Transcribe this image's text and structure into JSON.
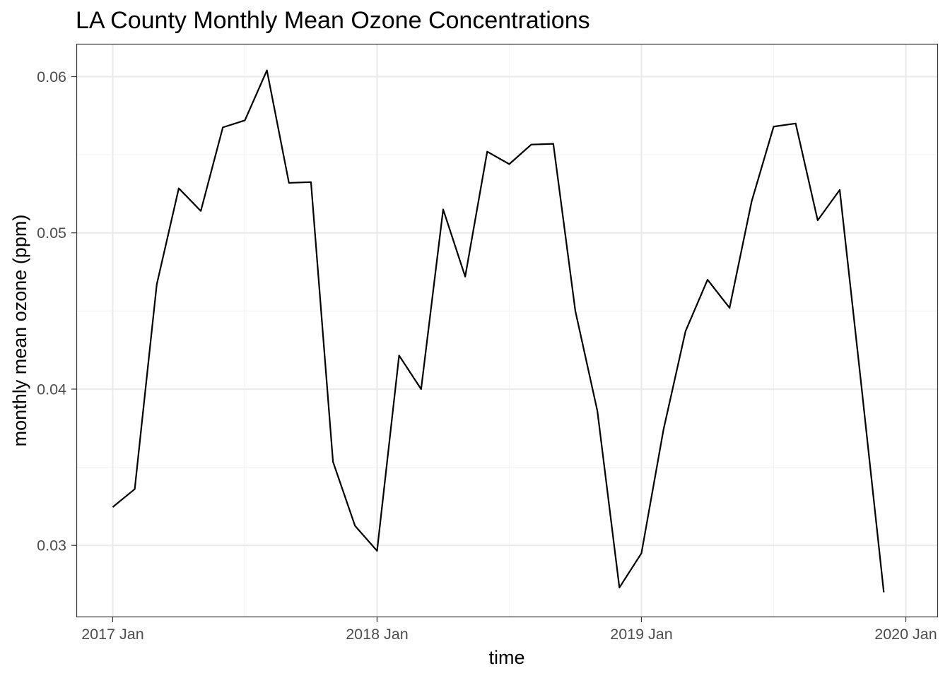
{
  "chart_data": {
    "type": "line",
    "title": "LA County Monthly Mean Ozone Concentrations",
    "xlabel": "time",
    "ylabel": "monthly mean ozone (ppm)",
    "x": [
      "2017-01",
      "2017-02",
      "2017-03",
      "2017-04",
      "2017-05",
      "2017-06",
      "2017-07",
      "2017-08",
      "2017-09",
      "2017-10",
      "2017-11",
      "2017-12",
      "2018-01",
      "2018-02",
      "2018-03",
      "2018-04",
      "2018-05",
      "2018-06",
      "2018-07",
      "2018-08",
      "2018-09",
      "2018-10",
      "2018-11",
      "2018-12",
      "2019-01",
      "2019-02",
      "2019-03",
      "2019-04",
      "2019-05",
      "2019-06",
      "2019-07",
      "2019-08",
      "2019-09",
      "2019-10",
      "2019-11",
      "2019-12"
    ],
    "series": [
      {
        "values": [
          0.03245,
          0.0336,
          0.0467,
          0.05285,
          0.0514,
          0.05675,
          0.0572,
          0.0604,
          0.0532,
          0.05325,
          0.03535,
          0.03125,
          0.02965,
          0.04215,
          0.04,
          0.0515,
          0.0472,
          0.0552,
          0.0544,
          0.05565,
          0.0557,
          0.045,
          0.0386,
          0.0273,
          0.0295,
          0.0374,
          0.0437,
          0.047,
          0.0452,
          0.052,
          0.0568,
          0.057,
          0.0508,
          0.05275,
          0.04,
          0.027
        ]
      }
    ],
    "x_ticks": [
      "2017 Jan",
      "2018 Jan",
      "2019 Jan",
      "2020 Jan"
    ],
    "x_tick_values": [
      "2017-01",
      "2018-01",
      "2019-01",
      "2020-01"
    ],
    "y_ticks": [
      "0.03",
      "0.04",
      "0.05",
      "0.06"
    ],
    "y_tick_values": [
      0.03,
      0.04,
      0.05,
      0.06
    ],
    "xlim": [
      "2016-11",
      "2020-02"
    ],
    "ylim": [
      0.0254,
      0.0621
    ],
    "grid": true,
    "legend": "none",
    "colors": {
      "line": "#000000",
      "grid_major": "#ebebeb",
      "grid_minor": "#f3f3f3",
      "panel_border": "#333333",
      "tick_text": "#4d4d4d"
    }
  }
}
